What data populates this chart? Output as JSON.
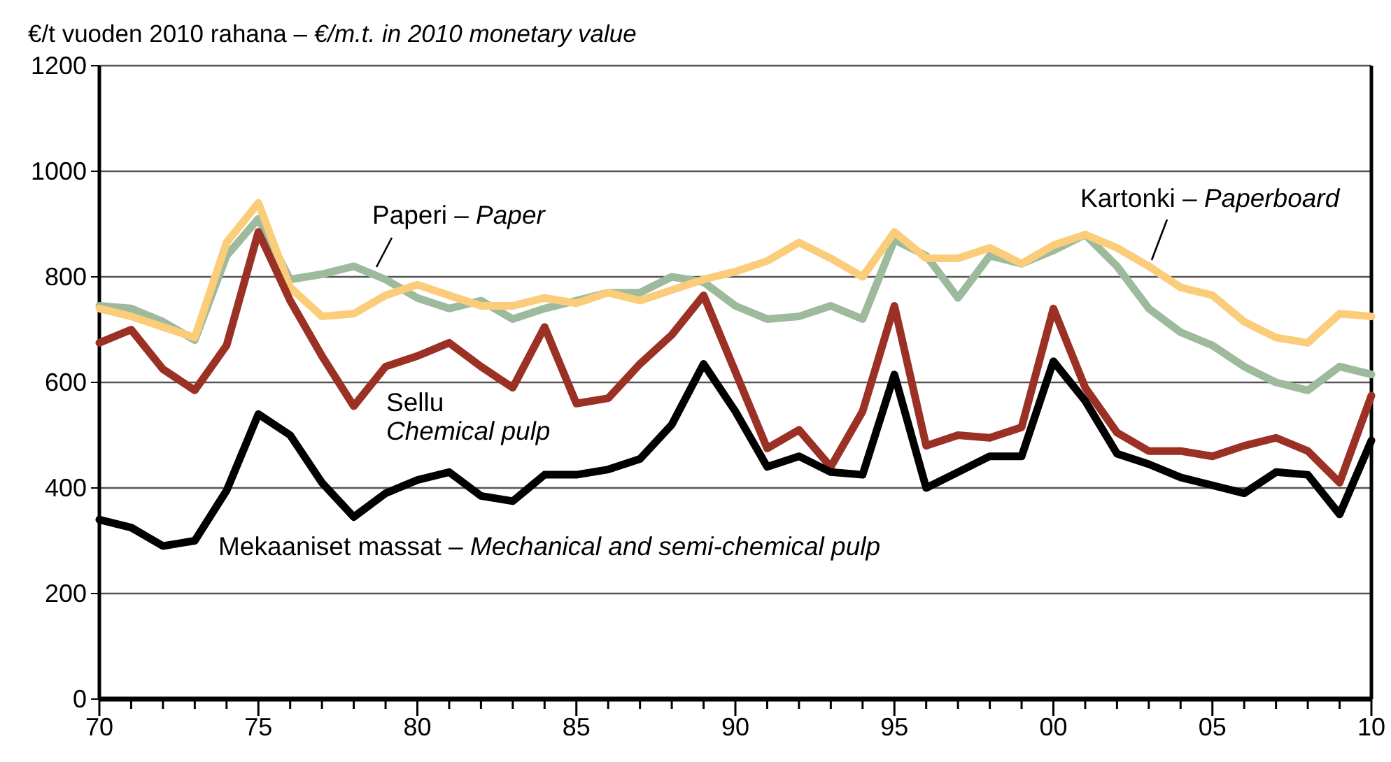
{
  "chart_data": {
    "type": "line",
    "ylabel": "€/t vuoden 2010 rahana – €/m.t. in 2010 monetary value",
    "x": [
      1970,
      1971,
      1972,
      1973,
      1974,
      1975,
      1976,
      1977,
      1978,
      1979,
      1980,
      1981,
      1982,
      1983,
      1984,
      1985,
      1986,
      1987,
      1988,
      1989,
      1990,
      1991,
      1992,
      1993,
      1994,
      1995,
      1996,
      1997,
      1998,
      1999,
      2000,
      2001,
      2002,
      2003,
      2004,
      2005,
      2006,
      2007,
      2008,
      2009,
      2010
    ],
    "xlim": [
      1970,
      2010
    ],
    "xticks": [
      {
        "value": 1970,
        "label": "70"
      },
      {
        "value": 1971,
        "label": null
      },
      {
        "value": 1972,
        "label": null
      },
      {
        "value": 1973,
        "label": null
      },
      {
        "value": 1974,
        "label": null
      },
      {
        "value": 1975,
        "label": "75"
      },
      {
        "value": 1976,
        "label": null
      },
      {
        "value": 1977,
        "label": null
      },
      {
        "value": 1978,
        "label": null
      },
      {
        "value": 1979,
        "label": null
      },
      {
        "value": 1980,
        "label": "80"
      },
      {
        "value": 1981,
        "label": null
      },
      {
        "value": 1982,
        "label": null
      },
      {
        "value": 1983,
        "label": null
      },
      {
        "value": 1984,
        "label": null
      },
      {
        "value": 1985,
        "label": "85"
      },
      {
        "value": 1986,
        "label": null
      },
      {
        "value": 1987,
        "label": null
      },
      {
        "value": 1988,
        "label": null
      },
      {
        "value": 1989,
        "label": null
      },
      {
        "value": 1990,
        "label": "90"
      },
      {
        "value": 1991,
        "label": null
      },
      {
        "value": 1992,
        "label": null
      },
      {
        "value": 1993,
        "label": null
      },
      {
        "value": 1994,
        "label": null
      },
      {
        "value": 1995,
        "label": "95"
      },
      {
        "value": 1996,
        "label": null
      },
      {
        "value": 1997,
        "label": null
      },
      {
        "value": 1998,
        "label": null
      },
      {
        "value": 1999,
        "label": null
      },
      {
        "value": 2000,
        "label": "00"
      },
      {
        "value": 2001,
        "label": null
      },
      {
        "value": 2002,
        "label": null
      },
      {
        "value": 2003,
        "label": null
      },
      {
        "value": 2004,
        "label": null
      },
      {
        "value": 2005,
        "label": "05"
      },
      {
        "value": 2006,
        "label": null
      },
      {
        "value": 2007,
        "label": null
      },
      {
        "value": 2008,
        "label": null
      },
      {
        "value": 2009,
        "label": null
      },
      {
        "value": 2010,
        "label": "10"
      }
    ],
    "ylim": [
      0,
      1200
    ],
    "yticks": [
      0,
      200,
      400,
      600,
      800,
      1000,
      1200
    ],
    "grid": "y",
    "marker": "none",
    "line_style": "solid",
    "series": [
      {
        "name": "Paperi – Paper",
        "color": "#9dba9d",
        "values": [
          745,
          740,
          715,
          680,
          840,
          910,
          795,
          805,
          820,
          795,
          760,
          740,
          755,
          720,
          740,
          755,
          770,
          770,
          800,
          790,
          745,
          720,
          725,
          745,
          720,
          870,
          840,
          760,
          840,
          825,
          850,
          880,
          820,
          740,
          695,
          670,
          630,
          600,
          585,
          630,
          615
        ]
      },
      {
        "name": "Kartonki – Paperboard",
        "color": "#fbcd7a",
        "values": [
          740,
          725,
          705,
          685,
          865,
          940,
          780,
          725,
          730,
          765,
          785,
          765,
          745,
          745,
          760,
          750,
          770,
          755,
          775,
          795,
          810,
          830,
          865,
          835,
          800,
          885,
          835,
          835,
          855,
          825,
          860,
          880,
          855,
          820,
          780,
          765,
          715,
          685,
          675,
          730,
          725
        ]
      },
      {
        "name": "Sellu\nChemical pulp",
        "color": "#9b3024",
        "values": [
          675,
          700,
          625,
          585,
          670,
          885,
          755,
          650,
          555,
          630,
          650,
          675,
          630,
          590,
          705,
          560,
          570,
          635,
          690,
          765,
          620,
          475,
          510,
          440,
          545,
          745,
          480,
          500,
          495,
          515,
          740,
          590,
          505,
          470,
          470,
          460,
          480,
          495,
          470,
          410,
          575
        ]
      },
      {
        "name": "Mekaaniset massat – Mechanical and semi-chemical pulp",
        "color": "#000000",
        "values": [
          340,
          325,
          290,
          300,
          395,
          540,
          500,
          410,
          345,
          390,
          415,
          430,
          385,
          375,
          425,
          425,
          435,
          455,
          520,
          635,
          545,
          440,
          460,
          430,
          425,
          615,
          400,
          430,
          460,
          460,
          640,
          565,
          465,
          445,
          420,
          405,
          390,
          430,
          425,
          350,
          490
        ]
      }
    ]
  }
}
